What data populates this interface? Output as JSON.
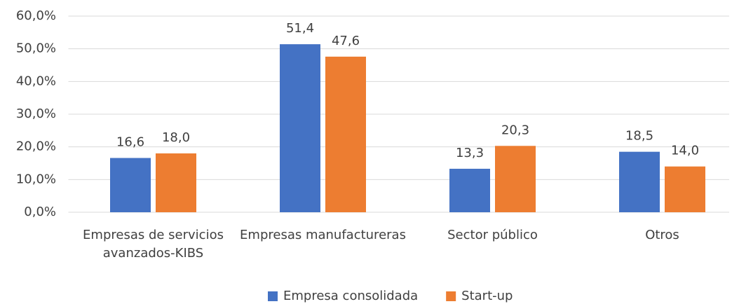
{
  "chart_data": {
    "type": "bar",
    "categories": [
      "Empresas de servicios avanzados-KIBS",
      "Empresas manufactureras",
      "Sector público",
      "Otros"
    ],
    "series": [
      {
        "name": "Empresa consolidada",
        "color": "#4472c4",
        "values": [
          16.6,
          51.4,
          13.3,
          18.5
        ],
        "value_labels": [
          "16,6",
          "51,4",
          "13,3",
          "18,5"
        ]
      },
      {
        "name": "Start-up",
        "color": "#ed7d31",
        "values": [
          18.0,
          47.6,
          20.3,
          14.0
        ],
        "value_labels": [
          "18,0",
          "47,6",
          "20,3",
          "14,0"
        ]
      }
    ],
    "ylim": [
      0,
      60
    ],
    "yticks": [
      {
        "value": 0,
        "label": "0,0%"
      },
      {
        "value": 10,
        "label": "10,0%"
      },
      {
        "value": 20,
        "label": "20,0%"
      },
      {
        "value": 30,
        "label": "30,0%"
      },
      {
        "value": 40,
        "label": "40,0%"
      },
      {
        "value": 50,
        "label": "50,0%"
      },
      {
        "value": 60,
        "label": "60,0%"
      }
    ],
    "grid": true,
    "legend": "bottom"
  }
}
